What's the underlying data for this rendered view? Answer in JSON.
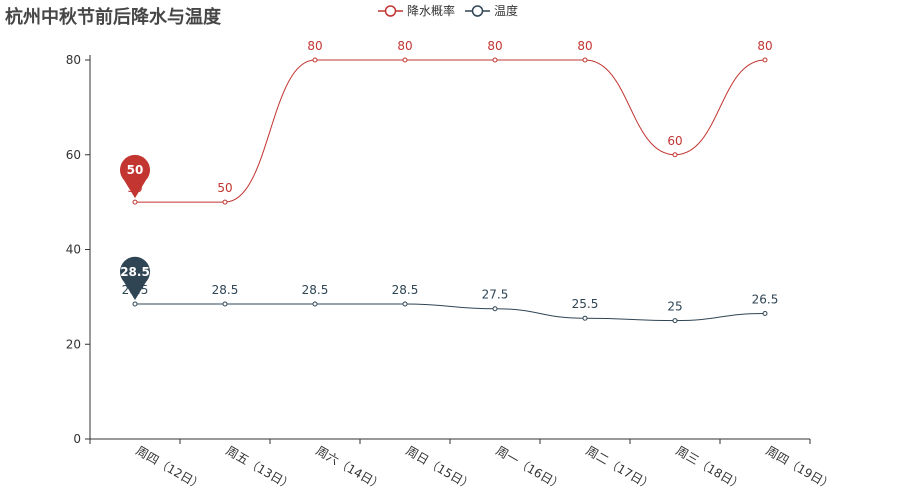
{
  "chart_data": {
    "type": "line",
    "title": "杭州中秋节前后降水与温度",
    "categories": [
      "周四（12日）",
      "周五（13日）",
      "周六（14日）",
      "周日（15日）",
      "周一（16日）",
      "周二（17日）",
      "周三（18日）",
      "周四（19日）"
    ],
    "series": [
      {
        "name": "降水概率",
        "values": [
          50,
          50,
          80,
          80,
          80,
          80,
          60,
          80
        ],
        "color": "#c23531",
        "smooth": true,
        "markPoint": {
          "index": 0,
          "label": "50"
        }
      },
      {
        "name": "温度",
        "values": [
          28.5,
          28.5,
          28.5,
          28.5,
          27.5,
          25.5,
          25,
          26.5
        ],
        "color": "#2f4554",
        "smooth": true,
        "markPoint": {
          "index": 0,
          "label": "28.5"
        }
      }
    ],
    "ylim": [
      0,
      80
    ],
    "yticks": [
      0,
      20,
      40,
      60,
      80
    ],
    "xlabel": "",
    "ylabel": "",
    "legend_position": "top-center",
    "grid": false
  }
}
